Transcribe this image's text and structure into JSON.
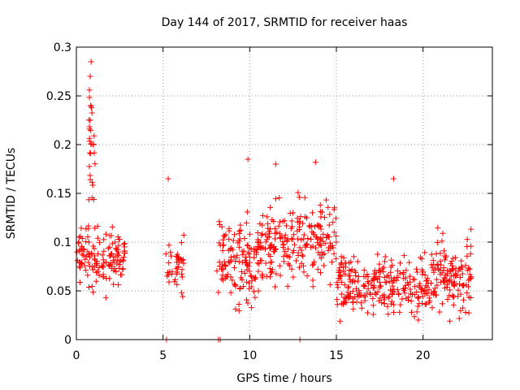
{
  "chart_data": {
    "type": "scatter",
    "title": "Day 144 of 2017, SRMTID for receiver haas",
    "xlabel": "GPS time / hours",
    "ylabel": "SRMTID / TECUs",
    "xlim": [
      0,
      24
    ],
    "ylim": [
      0,
      0.3
    ],
    "x_ticks": [
      0,
      5,
      10,
      15,
      20
    ],
    "x_tick_labels": [
      "0",
      "5",
      "10",
      "15",
      "20"
    ],
    "y_ticks": [
      0,
      0.05,
      0.1,
      0.15,
      0.2,
      0.25,
      0.3
    ],
    "y_tick_labels": [
      "0",
      "0.05",
      "0.1",
      "0.15",
      "0.2",
      "0.25",
      "0.3"
    ],
    "grid": true,
    "marker": "+",
    "color": "#ff0000",
    "series": [
      {
        "name": "SRMTID",
        "segments": [
          {
            "x_start": 0.0,
            "x_end": 2.8,
            "y_center": 0.085,
            "y_spread": 0.035,
            "n": 140
          },
          {
            "x_start": 0.7,
            "x_end": 1.1,
            "y_center": 0.18,
            "y_spread": 0.09,
            "n": 30
          },
          {
            "x_start": 5.1,
            "x_end": 6.2,
            "y_center": 0.075,
            "y_spread": 0.03,
            "n": 40
          },
          {
            "x_start": 8.1,
            "x_end": 10.5,
            "y_center": 0.08,
            "y_spread": 0.05,
            "n": 130
          },
          {
            "x_start": 10.5,
            "x_end": 15.0,
            "y_center": 0.1,
            "y_spread": 0.05,
            "n": 220
          },
          {
            "x_start": 15.0,
            "x_end": 20.5,
            "y_center": 0.055,
            "y_spread": 0.035,
            "n": 260
          },
          {
            "x_start": 20.5,
            "x_end": 22.8,
            "y_center": 0.065,
            "y_spread": 0.045,
            "n": 130
          }
        ],
        "outliers": [
          {
            "x": 0.85,
            "y": 0.285
          },
          {
            "x": 0.8,
            "y": 0.27
          },
          {
            "x": 0.75,
            "y": 0.256
          },
          {
            "x": 0.82,
            "y": 0.24
          },
          {
            "x": 0.8,
            "y": 0.225
          },
          {
            "x": 5.3,
            "y": 0.165
          },
          {
            "x": 11.5,
            "y": 0.18
          },
          {
            "x": 13.8,
            "y": 0.182
          },
          {
            "x": 18.3,
            "y": 0.165
          },
          {
            "x": 9.9,
            "y": 0.185
          },
          {
            "x": 5.2,
            "y": 0.0
          },
          {
            "x": 8.2,
            "y": 0.0
          },
          {
            "x": 8.3,
            "y": 0.0
          },
          {
            "x": 12.9,
            "y": 0.0
          }
        ]
      }
    ]
  }
}
